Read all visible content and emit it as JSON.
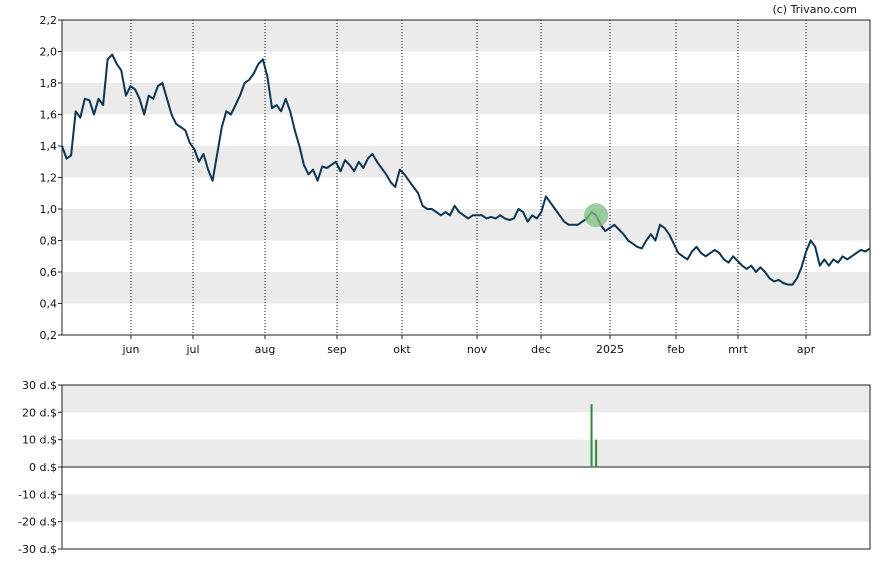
{
  "credit": "(c) Trivano.com",
  "colors": {
    "price_line": "#0d3552",
    "band": "#ebebeb",
    "frame": "#222222",
    "gridline": "#111111",
    "marker": "#7fbf7f",
    "volume_bar": "#2e8b3e"
  },
  "chart_data": [
    {
      "type": "line",
      "title": "",
      "xlabel": "",
      "ylabel": "",
      "ylim": [
        0.2,
        2.2
      ],
      "y_ticks": [
        "0,2",
        "0,4",
        "0,6",
        "0,8",
        "1,0",
        "1,2",
        "1,4",
        "1,6",
        "1,8",
        "2,0",
        "2,2"
      ],
      "x_ticks": [
        "jun",
        "jul",
        "aug",
        "sep",
        "okt",
        "nov",
        "dec",
        "2025",
        "feb",
        "mrt",
        "apr"
      ],
      "grid": "vertical dotted at month ticks, alternating horizontal bands",
      "series": [
        {
          "values": [
            1.4,
            1.32,
            1.34,
            1.62,
            1.58,
            1.7,
            1.69,
            1.6,
            1.7,
            1.66,
            1.95,
            1.98,
            1.92,
            1.88,
            1.72,
            1.78,
            1.76,
            1.7,
            1.6,
            1.72,
            1.7,
            1.78,
            1.8,
            1.7,
            1.6,
            1.54,
            1.52,
            1.5,
            1.42,
            1.38,
            1.3,
            1.35,
            1.25,
            1.18,
            1.35,
            1.52,
            1.62,
            1.6,
            1.66,
            1.72,
            1.8,
            1.82,
            1.86,
            1.92,
            1.95,
            1.84,
            1.64,
            1.66,
            1.62,
            1.7,
            1.62,
            1.5,
            1.4,
            1.28,
            1.22,
            1.25,
            1.18,
            1.27,
            1.26,
            1.28,
            1.3,
            1.24,
            1.31,
            1.28,
            1.24,
            1.3,
            1.26,
            1.32,
            1.35,
            1.3,
            1.26,
            1.22,
            1.17,
            1.14,
            1.25,
            1.22,
            1.18,
            1.14,
            1.1,
            1.02,
            1.0,
            1.0,
            0.98,
            0.96,
            0.98,
            0.96,
            1.02,
            0.98,
            0.96,
            0.94,
            0.96,
            0.96,
            0.96,
            0.94,
            0.95,
            0.94,
            0.96,
            0.94,
            0.93,
            0.94,
            1.0,
            0.98,
            0.92,
            0.96,
            0.94,
            0.98,
            1.08,
            1.04,
            1.0,
            0.96,
            0.92,
            0.9,
            0.9,
            0.9,
            0.92,
            0.94,
            0.98,
            0.96,
            0.9,
            0.86,
            0.88,
            0.9,
            0.87,
            0.84,
            0.8,
            0.78,
            0.76,
            0.75,
            0.8,
            0.84,
            0.8,
            0.9,
            0.88,
            0.84,
            0.78,
            0.72,
            0.7,
            0.68,
            0.73,
            0.76,
            0.72,
            0.7,
            0.72,
            0.74,
            0.72,
            0.68,
            0.66,
            0.7,
            0.67,
            0.64,
            0.62,
            0.64,
            0.6,
            0.63,
            0.6,
            0.56,
            0.54,
            0.55,
            0.53,
            0.52,
            0.52,
            0.56,
            0.63,
            0.73,
            0.8,
            0.76,
            0.64,
            0.68,
            0.64,
            0.68,
            0.66,
            0.7,
            0.68,
            0.7,
            0.72,
            0.74,
            0.73,
            0.75
          ]
        }
      ],
      "highlight_index": 117
    },
    {
      "type": "bar",
      "title": "",
      "xlabel": "",
      "ylabel": "",
      "ylim": [
        -30,
        30
      ],
      "y_ticks": [
        "30 d.$",
        "20 d.$",
        "10 d.$",
        "0 d.$",
        "-10 d.$",
        "-20 d.$",
        "-30 d.$"
      ],
      "values": [
        23,
        10
      ],
      "bar_index": [
        116,
        117
      ]
    }
  ]
}
